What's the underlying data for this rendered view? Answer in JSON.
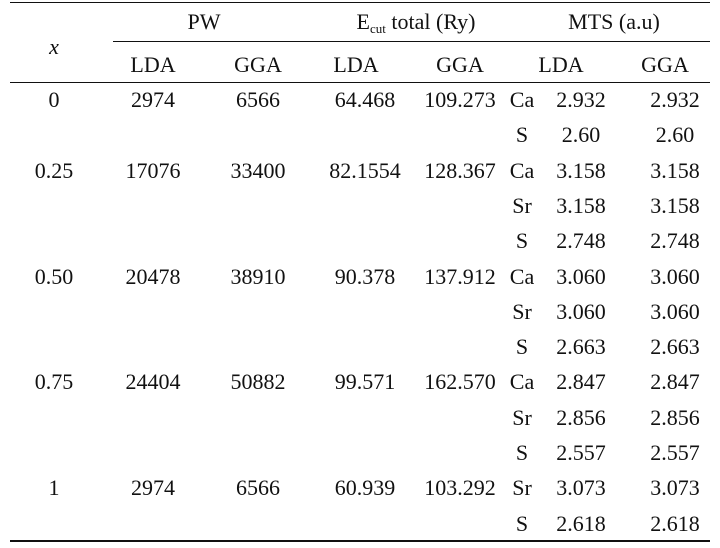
{
  "header": {
    "x_label": "x",
    "pw_group": "PW",
    "ecut_prefix": "E",
    "ecut_sub": "cut",
    "ecut_suffix": " total (Ry)",
    "mts_group": "MTS (a.u)",
    "sub_headers": [
      "LDA",
      "GGA",
      "LDA",
      "GGA",
      "LDA",
      "GGA"
    ]
  },
  "rows": [
    {
      "x": "0",
      "pw_lda": "2974",
      "pw_gga": "6566",
      "ecut_lda": "64.468",
      "ecut_gga": "109.273",
      "elements": [
        {
          "el": "Ca",
          "lda": "2.932",
          "gga": "2.932"
        },
        {
          "el": "S",
          "lda": "2.60",
          "gga": "2.60"
        }
      ]
    },
    {
      "x": "0.25",
      "pw_lda": "17076",
      "pw_gga": "33400",
      "ecut_lda": "82.1554",
      "ecut_gga": "128.367",
      "elements": [
        {
          "el": "Ca",
          "lda": "3.158",
          "gga": "3.158"
        },
        {
          "el": "Sr",
          "lda": "3.158",
          "gga": "3.158"
        },
        {
          "el": "S",
          "lda": "2.748",
          "gga": "2.748"
        }
      ]
    },
    {
      "x": "0.50",
      "pw_lda": "20478",
      "pw_gga": "38910",
      "ecut_lda": "90.378",
      "ecut_gga": "137.912",
      "elements": [
        {
          "el": "Ca",
          "lda": "3.060",
          "gga": "3.060"
        },
        {
          "el": "Sr",
          "lda": "3.060",
          "gga": "3.060"
        },
        {
          "el": "S",
          "lda": "2.663",
          "gga": "2.663"
        }
      ]
    },
    {
      "x": "0.75",
      "pw_lda": "24404",
      "pw_gga": "50882",
      "ecut_lda": "99.571",
      "ecut_gga": "162.570",
      "elements": [
        {
          "el": "Ca",
          "lda": "2.847",
          "gga": "2.847"
        },
        {
          "el": "Sr",
          "lda": "2.856",
          "gga": "2.856"
        },
        {
          "el": "S",
          "lda": "2.557",
          "gga": "2.557"
        }
      ]
    },
    {
      "x": "1",
      "pw_lda": "2974",
      "pw_gga": "6566",
      "ecut_lda": "60.939",
      "ecut_gga": "103.292",
      "elements": [
        {
          "el": "Sr",
          "lda": "3.073",
          "gga": "3.073"
        },
        {
          "el": "S",
          "lda": "2.618",
          "gga": "2.618"
        }
      ]
    }
  ]
}
